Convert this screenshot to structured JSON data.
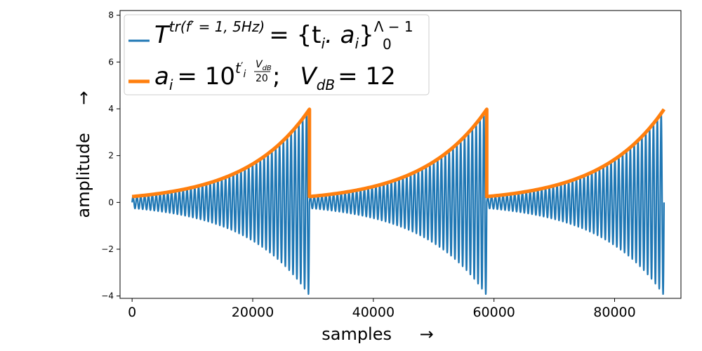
{
  "chart_data": {
    "type": "line",
    "title": "",
    "xlabel": "samples",
    "xlabel_arrow": "→",
    "ylabel": "amplitude",
    "ylabel_arrow": "→",
    "xlim": [
      -2000,
      91000
    ],
    "ylim": [
      -4.1,
      8.2
    ],
    "x_ticks": [
      0,
      20000,
      40000,
      60000,
      80000
    ],
    "x_tick_labels": [
      "0",
      "20000",
      "40000",
      "60000",
      "80000"
    ],
    "y_ticks": [
      -4,
      -2,
      0,
      2,
      4,
      6,
      8
    ],
    "y_tick_labels": [
      "−4",
      "−2",
      "0",
      "2",
      "4",
      "6",
      "8"
    ],
    "grid": false,
    "legend_position": "top-left",
    "colors": {
      "signal": "#1f77b4",
      "envelope": "#ff7f0e"
    },
    "segments": [
      {
        "x_start": 0,
        "x_end": 29400,
        "oscillations": 46
      },
      {
        "x_start": 29400,
        "x_end": 58800,
        "oscillations": 46
      },
      {
        "x_start": 58800,
        "x_end": 88200,
        "oscillations": 46
      }
    ],
    "envelope": {
      "min_amplitude": 0.25,
      "max_amplitude": 3.98,
      "V_dB": 12
    },
    "series": [
      {
        "name": "T^{tr(f′=1,5Hz)} = {t_i . a_i}_0^{Λ−1}",
        "legend": {
          "base": "T",
          "sup": "tr(f′ = 1, 5Hz)",
          "rhs": "= {t",
          "sub_i": "i",
          "dot": ". a",
          "sub_i2": "i",
          "close": "}",
          "upper": "Λ − 1",
          "lower": "0"
        },
        "color": "#1f77b4",
        "role": "signal"
      },
      {
        "name": "a_i = 10^{t′_i V_dB/20};  V_dB = 12",
        "legend": {
          "lhs": "a",
          "sub_i": "i",
          "eq": "= 10",
          "exp_t": "t",
          "exp_sup": "′",
          "exp_sub": "i",
          "frac_num": "V",
          "frac_num_sub": "dB",
          "frac_den": "20",
          "semi": ";",
          "v": "V",
          "v_sub": "dB",
          "v_rhs": "= 12"
        },
        "color": "#ff7f0e",
        "role": "envelope"
      }
    ]
  }
}
